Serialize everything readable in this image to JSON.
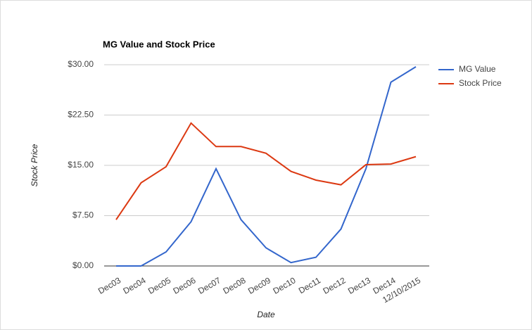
{
  "chart_data": {
    "type": "line",
    "title": "MG Value and Stock Price",
    "x_label": "Date",
    "y_label": "Stock Price",
    "categories": [
      "Dec03",
      "Dec04",
      "Dec05",
      "Dec06",
      "Dec07",
      "Dec08",
      "Dec09",
      "Dec10",
      "Dec11",
      "Dec12",
      "Dec13",
      "Dec14",
      "12/10/2015"
    ],
    "series": [
      {
        "name": "MG Value",
        "color": "#3366cc",
        "values": [
          0,
          0,
          2.1,
          6.6,
          14.5,
          6.9,
          2.7,
          0.5,
          1.3,
          5.5,
          14.5,
          27.4,
          29.7
        ]
      },
      {
        "name": "Stock Price",
        "color": "#dc3912",
        "values": [
          6.9,
          12.4,
          14.8,
          21.3,
          17.8,
          17.8,
          16.8,
          14.1,
          12.8,
          12.1,
          15.1,
          15.2,
          16.3
        ]
      }
    ],
    "ylim": [
      0,
      30
    ],
    "yticks": [
      {
        "value": 0,
        "label": "$0.00"
      },
      {
        "value": 7.5,
        "label": "$7.50"
      },
      {
        "value": 15,
        "label": "$15.00"
      },
      {
        "value": 22.5,
        "label": "$22.50"
      },
      {
        "value": 30,
        "label": "$30.00"
      }
    ],
    "grid": true,
    "legend": "right"
  }
}
